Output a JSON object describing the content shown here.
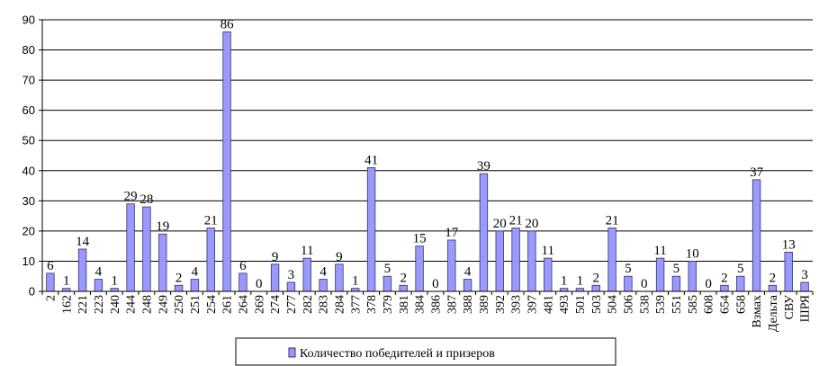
{
  "chart_data": {
    "type": "bar",
    "categories": [
      "2",
      "162",
      "221",
      "223",
      "240",
      "244",
      "248",
      "249",
      "250",
      "251",
      "254",
      "261",
      "264",
      "269",
      "274",
      "277",
      "282",
      "283",
      "284",
      "377",
      "378",
      "379",
      "381",
      "384",
      "386",
      "387",
      "388",
      "389",
      "392",
      "393",
      "397",
      "481",
      "493",
      "501",
      "503",
      "504",
      "506",
      "538",
      "539",
      "551",
      "585",
      "608",
      "654",
      "658",
      "Взмах",
      "Дельта",
      "СВУ",
      "ШРЯ"
    ],
    "series": [
      {
        "name": "Количество победителей и призеров",
        "values": [
          6,
          1,
          14,
          4,
          1,
          29,
          28,
          19,
          2,
          4,
          21,
          86,
          6,
          0,
          9,
          3,
          11,
          4,
          9,
          1,
          41,
          5,
          2,
          15,
          0,
          17,
          4,
          39,
          20,
          21,
          20,
          11,
          1,
          1,
          2,
          21,
          5,
          0,
          11,
          5,
          10,
          0,
          2,
          5,
          37,
          2,
          13,
          3
        ]
      }
    ],
    "ylim": [
      0,
      90
    ],
    "yticks": [
      0,
      10,
      20,
      30,
      40,
      50,
      60,
      70,
      80,
      90
    ],
    "grid": true,
    "legend": "bottom",
    "colors": {
      "bar": "#9999ff",
      "bar_edge": "#333366",
      "grid": "#000000"
    }
  }
}
